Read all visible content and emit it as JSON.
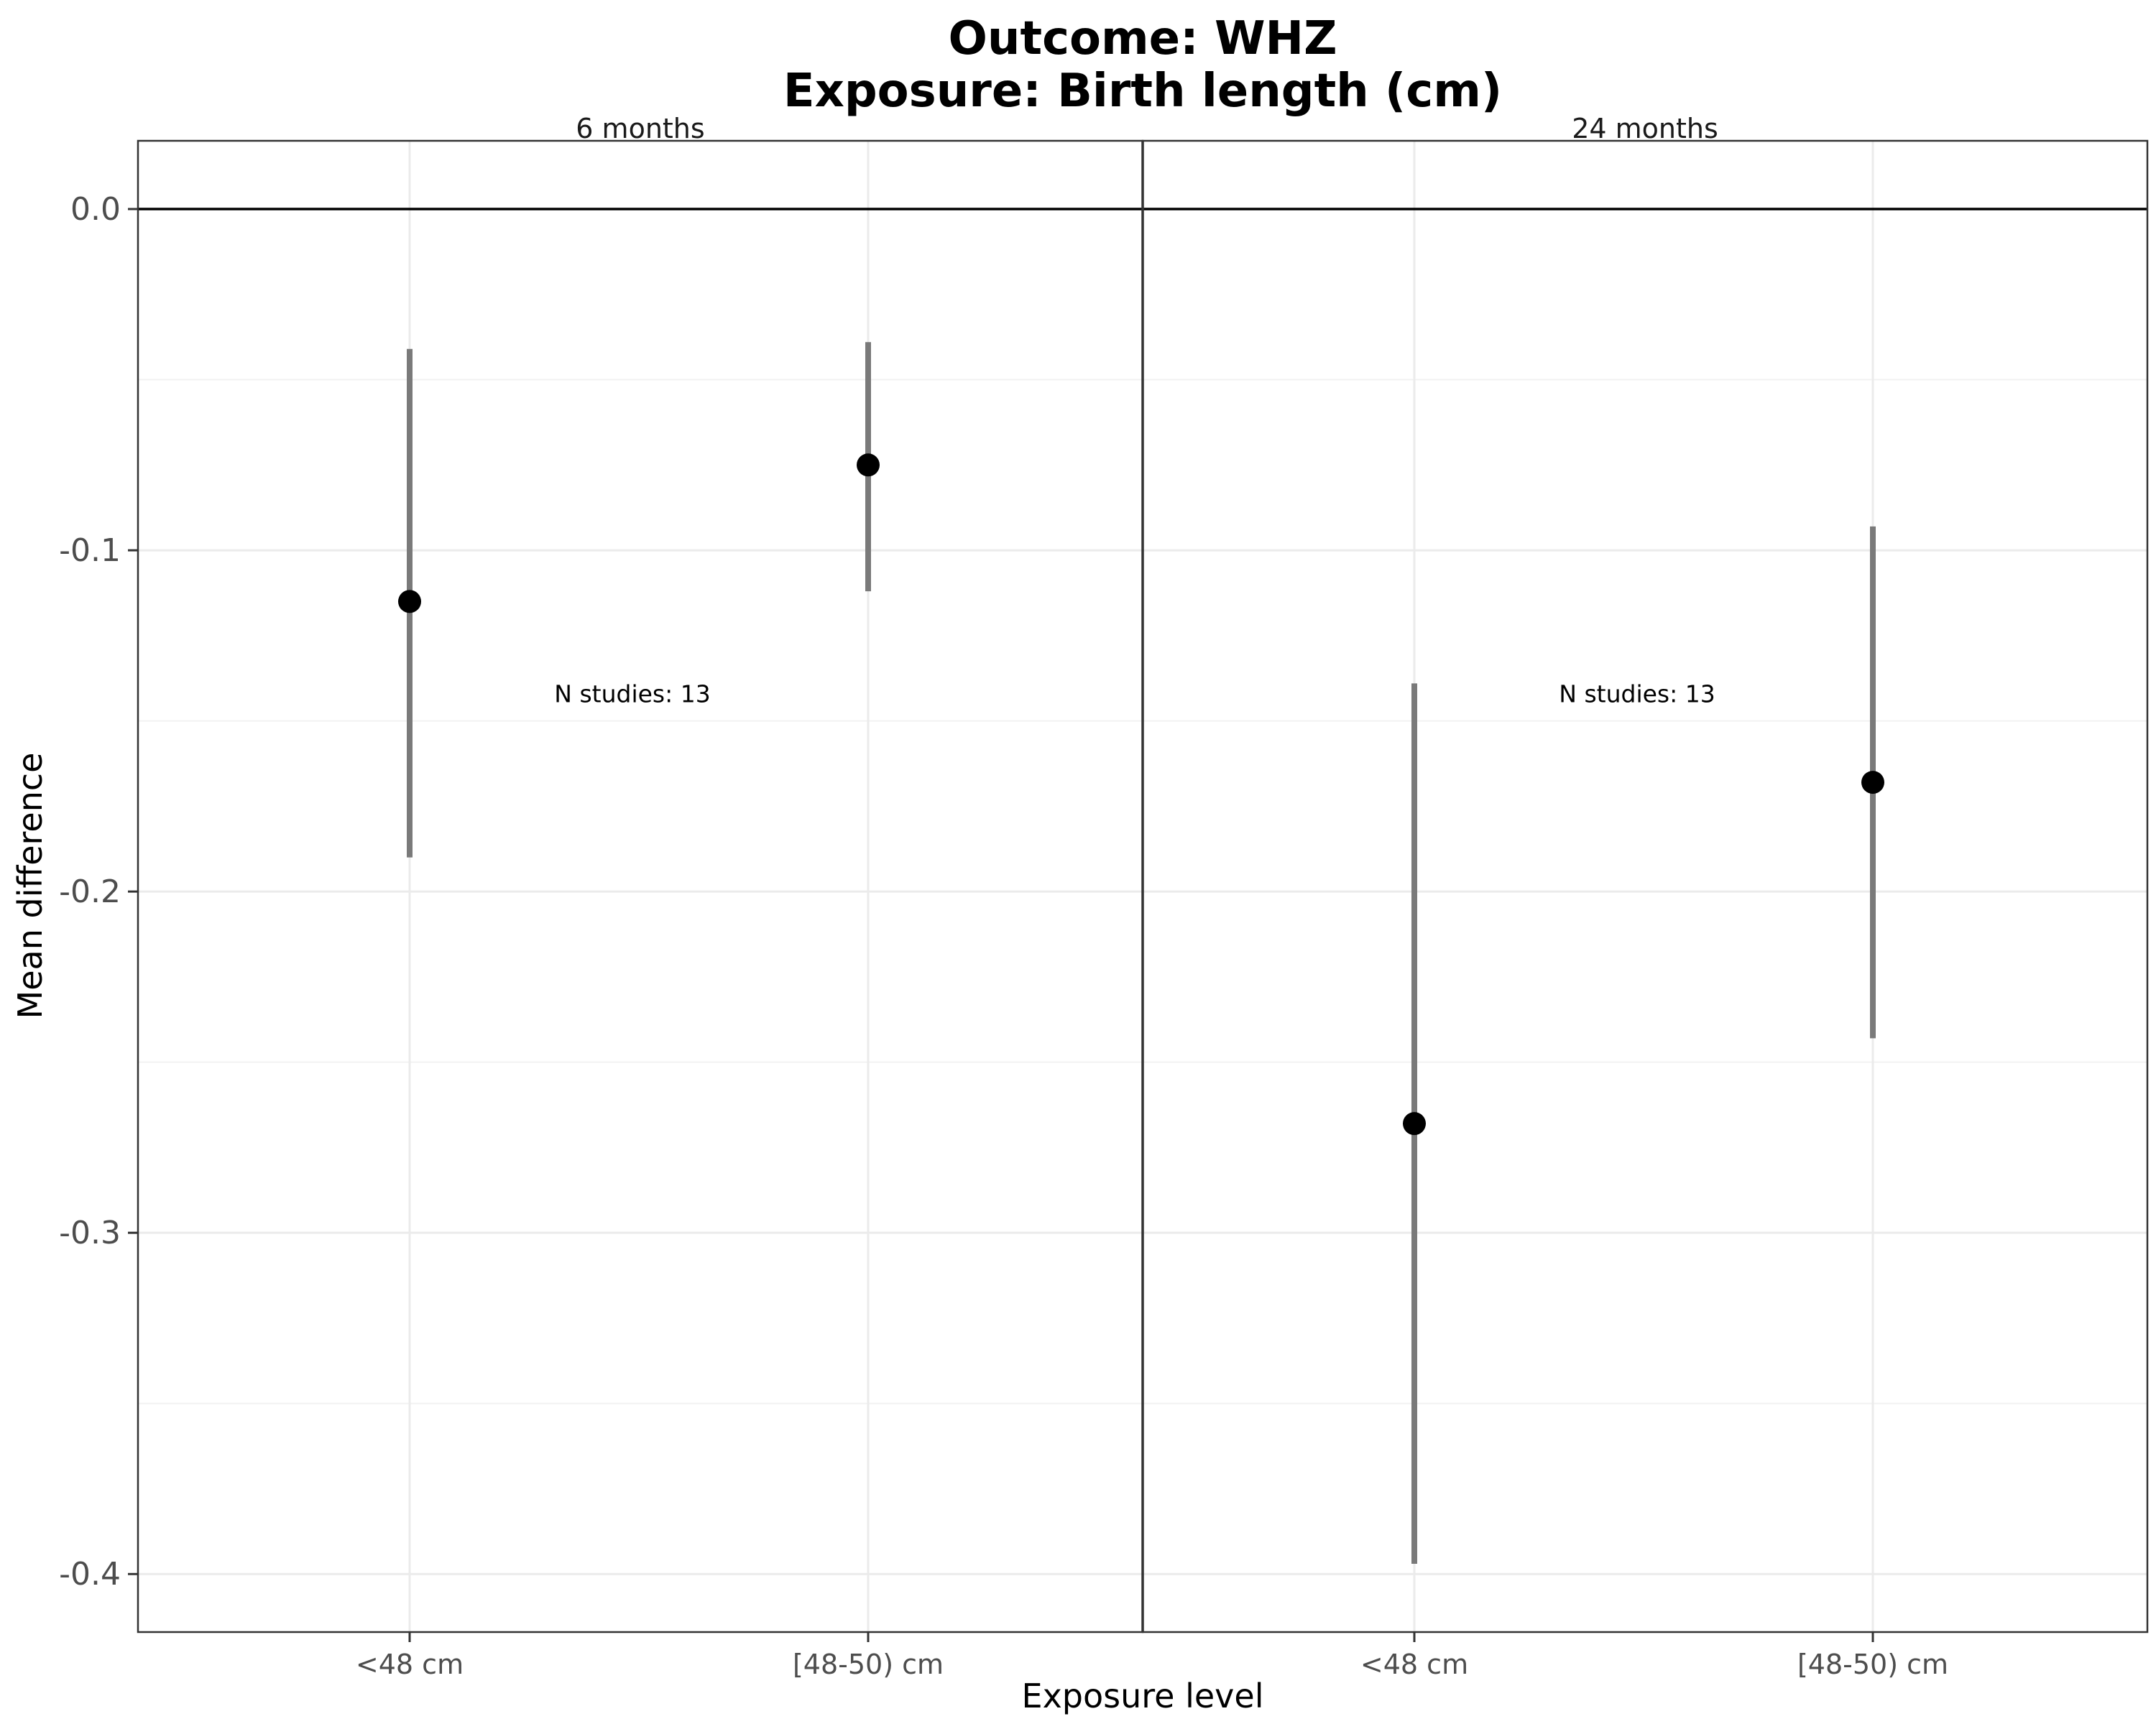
{
  "chart_data": {
    "type": "scatter",
    "title_lines": [
      "Outcome: WHZ",
      "Exposure: Birth length (cm)"
    ],
    "xlabel": "Exposure level",
    "ylabel": "Mean difference",
    "ylim": [
      -0.417,
      0.02
    ],
    "yticks": [
      0.0,
      -0.1,
      -0.2,
      -0.3,
      -0.4
    ],
    "ytick_labels": [
      "0.0",
      "-0.1",
      "-0.2",
      "-0.3",
      "-0.4"
    ],
    "categories": [
      "<48 cm",
      "[48-50) cm"
    ],
    "grid": true,
    "reference_line": 0.0,
    "panels": [
      {
        "strip": "6 months",
        "annotation": "N studies: 13",
        "points": [
          {
            "category": "<48 cm",
            "estimate": -0.115,
            "lower": -0.19,
            "upper": -0.041
          },
          {
            "category": "[48-50) cm",
            "estimate": -0.075,
            "lower": -0.112,
            "upper": -0.039
          }
        ]
      },
      {
        "strip": "24 months",
        "annotation": "N studies: 13",
        "points": [
          {
            "category": "<48 cm",
            "estimate": -0.268,
            "lower": -0.397,
            "upper": -0.139
          },
          {
            "category": "[48-50) cm",
            "estimate": -0.168,
            "lower": -0.243,
            "upper": -0.093
          }
        ]
      }
    ]
  }
}
